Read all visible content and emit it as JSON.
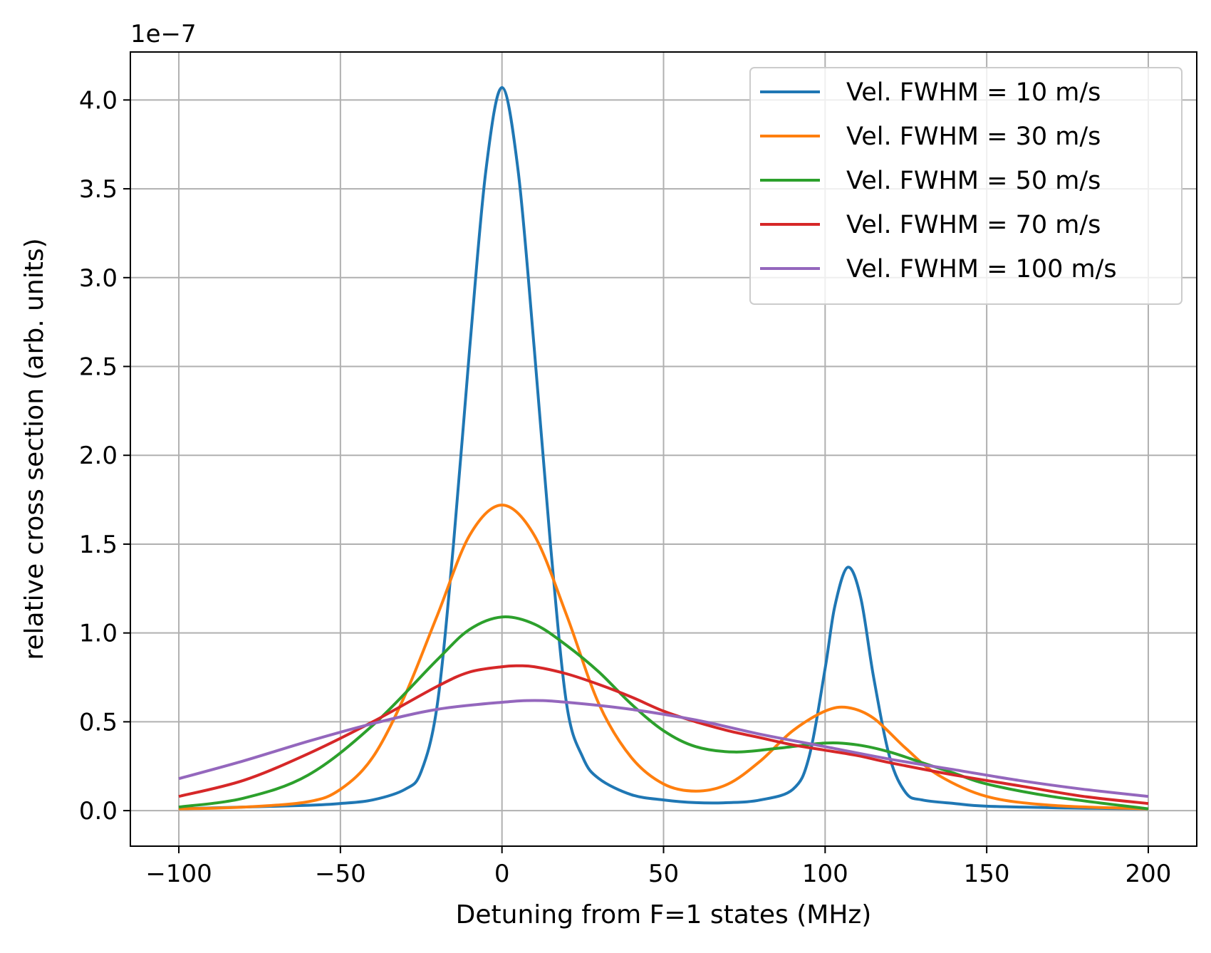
{
  "chart_data": {
    "type": "line",
    "xlabel": "Detuning from F=1 states (MHz)",
    "ylabel": "relative cross section (arb. units)",
    "y_offset_label": "1e−7",
    "xlim": [
      -115,
      215
    ],
    "ylim": [
      -0.2,
      4.27
    ],
    "x_ticks": [
      -100,
      -50,
      0,
      50,
      100,
      150,
      200
    ],
    "x_tick_labels": [
      "−100",
      "−50",
      "0",
      "50",
      "100",
      "150",
      "200"
    ],
    "y_ticks": [
      0.0,
      0.5,
      1.0,
      1.5,
      2.0,
      2.5,
      3.0,
      3.5,
      4.0
    ],
    "y_tick_labels": [
      "0.0",
      "0.5",
      "1.0",
      "1.5",
      "2.0",
      "2.5",
      "3.0",
      "3.5",
      "4.0"
    ],
    "grid": true,
    "legend_position": "top-right",
    "series": [
      {
        "name": "Vel. FWHM = 10 m/s",
        "color": "#1f77b4",
        "x": [
          -100,
          -80,
          -60,
          -50,
          -40,
          -30,
          -25,
          -20,
          -15,
          -10,
          -5,
          0,
          5,
          10,
          15,
          20,
          25,
          30,
          40,
          50,
          60,
          70,
          80,
          90,
          95,
          100,
          103,
          107,
          111,
          115,
          120,
          125,
          130,
          140,
          150,
          175,
          200
        ],
        "y": [
          0.01,
          0.02,
          0.03,
          0.04,
          0.06,
          0.12,
          0.22,
          0.6,
          1.5,
          2.6,
          3.6,
          4.07,
          3.6,
          2.6,
          1.5,
          0.6,
          0.3,
          0.18,
          0.09,
          0.06,
          0.045,
          0.045,
          0.06,
          0.12,
          0.3,
          0.8,
          1.15,
          1.37,
          1.2,
          0.75,
          0.3,
          0.1,
          0.06,
          0.04,
          0.025,
          0.015,
          0.01
        ]
      },
      {
        "name": "Vel. FWHM = 30 m/s",
        "color": "#ff7f0e",
        "x": [
          -100,
          -80,
          -60,
          -50,
          -40,
          -30,
          -20,
          -10,
          0,
          10,
          20,
          30,
          40,
          50,
          60,
          70,
          80,
          90,
          100,
          107,
          115,
          125,
          135,
          150,
          170,
          200
        ],
        "y": [
          0.01,
          0.02,
          0.05,
          0.12,
          0.3,
          0.65,
          1.1,
          1.55,
          1.72,
          1.55,
          1.1,
          0.6,
          0.3,
          0.15,
          0.11,
          0.15,
          0.28,
          0.45,
          0.56,
          0.58,
          0.52,
          0.35,
          0.2,
          0.08,
          0.03,
          0.01
        ]
      },
      {
        "name": "Vel. FWHM = 50 m/s",
        "color": "#2ca02c",
        "x": [
          -100,
          -80,
          -60,
          -40,
          -20,
          -10,
          0,
          10,
          20,
          30,
          40,
          50,
          60,
          72,
          85,
          100,
          110,
          120,
          130,
          140,
          150,
          170,
          200
        ],
        "y": [
          0.02,
          0.07,
          0.2,
          0.48,
          0.85,
          1.02,
          1.09,
          1.05,
          0.93,
          0.78,
          0.6,
          0.45,
          0.36,
          0.33,
          0.35,
          0.38,
          0.37,
          0.33,
          0.27,
          0.21,
          0.15,
          0.08,
          0.01
        ]
      },
      {
        "name": "Vel. FWHM = 70 m/s",
        "color": "#d62728",
        "x": [
          -100,
          -80,
          -60,
          -40,
          -20,
          -10,
          0,
          5,
          10,
          20,
          30,
          40,
          50,
          60,
          70,
          80,
          90,
          100,
          110,
          120,
          140,
          160,
          180,
          200
        ],
        "y": [
          0.08,
          0.17,
          0.32,
          0.5,
          0.7,
          0.78,
          0.81,
          0.815,
          0.81,
          0.77,
          0.71,
          0.64,
          0.56,
          0.5,
          0.45,
          0.41,
          0.37,
          0.34,
          0.31,
          0.27,
          0.2,
          0.14,
          0.08,
          0.04
        ]
      },
      {
        "name": "Vel. FWHM = 100 m/s",
        "color": "#9467bd",
        "x": [
          -100,
          -80,
          -60,
          -40,
          -20,
          0,
          10,
          20,
          40,
          60,
          80,
          100,
          120,
          140,
          160,
          180,
          200
        ],
        "y": [
          0.18,
          0.28,
          0.39,
          0.49,
          0.57,
          0.61,
          0.62,
          0.61,
          0.57,
          0.51,
          0.43,
          0.36,
          0.29,
          0.23,
          0.17,
          0.12,
          0.08
        ]
      }
    ]
  }
}
